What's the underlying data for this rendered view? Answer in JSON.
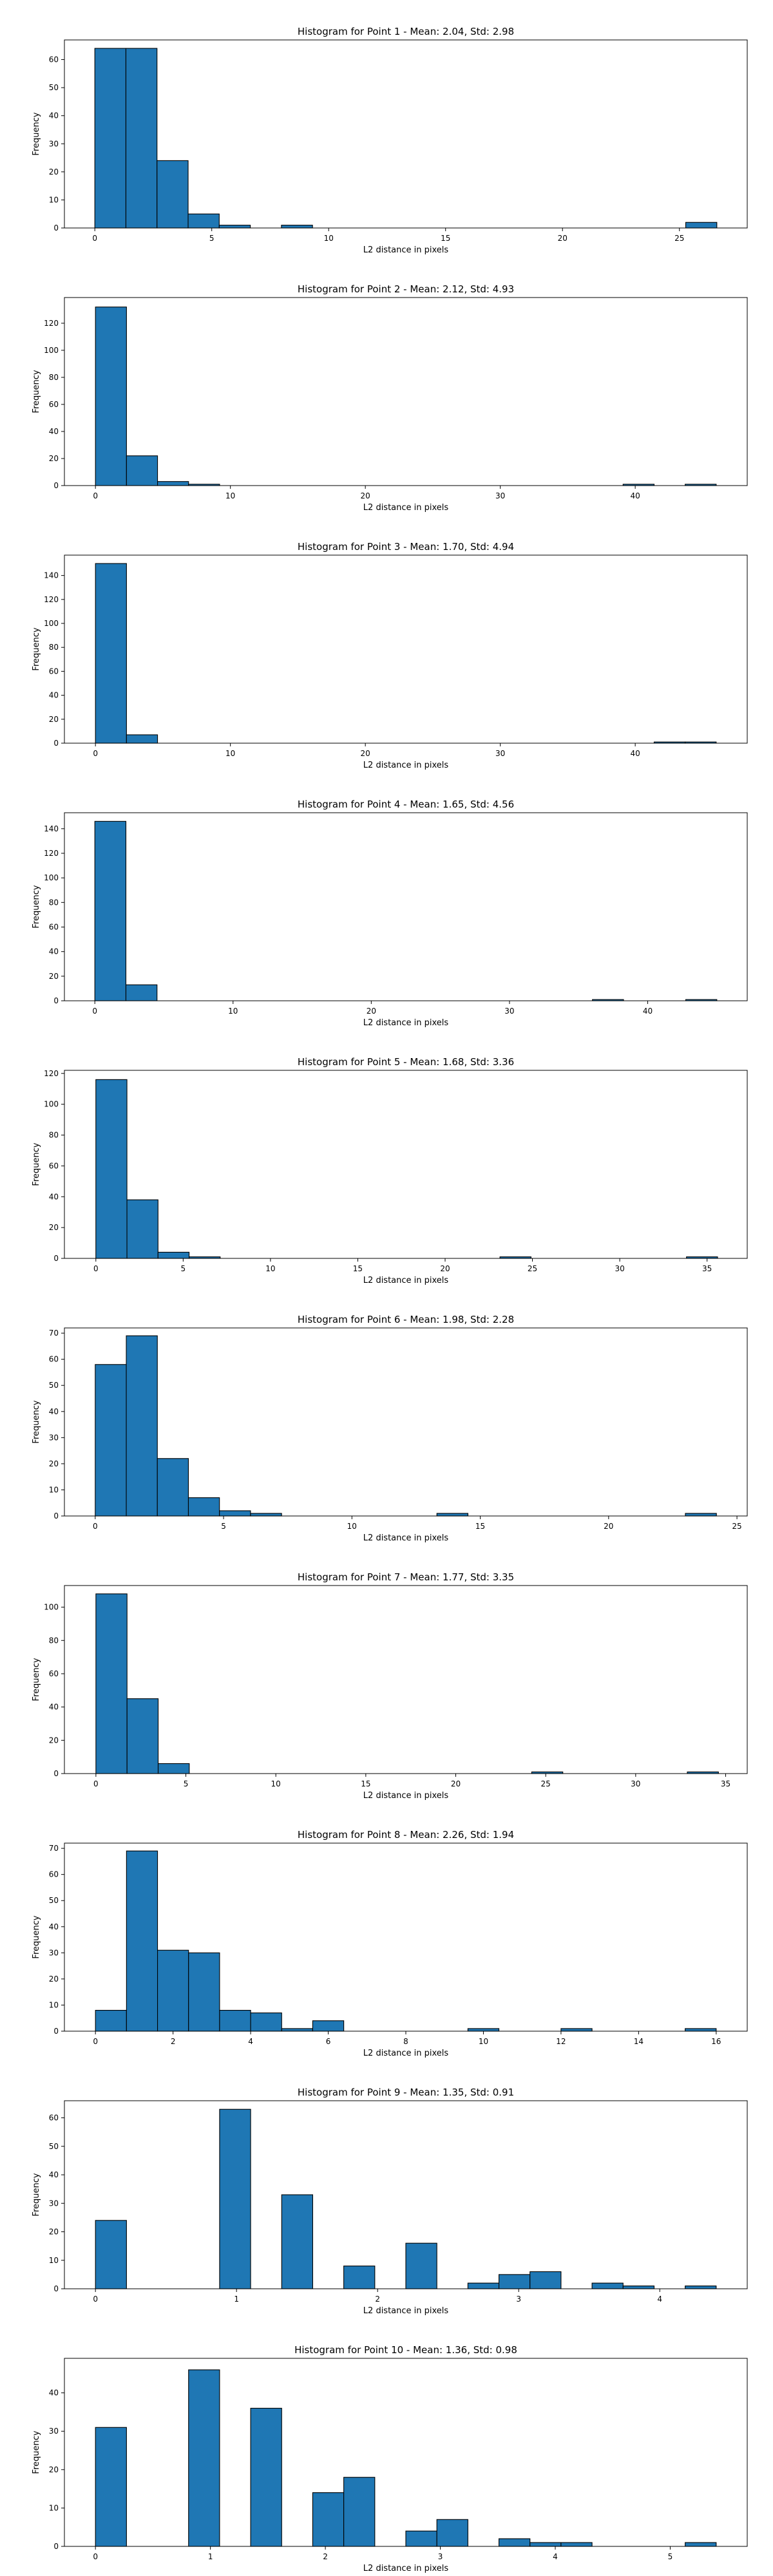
{
  "figure": {
    "color": "#1f77b4"
  },
  "chart_data": [
    {
      "type": "bar",
      "title": "Histogram for Point 1 - Mean: 2.04, Std: 2.98",
      "xlabel": "L2 distance in pixels",
      "ylabel": "Frequency",
      "xlim": [
        -1.3,
        27.9
      ],
      "ylim": [
        0,
        67
      ],
      "xticks": [
        0,
        5,
        10,
        15,
        20,
        25
      ],
      "yticks": [
        0,
        10,
        20,
        30,
        40,
        50,
        60
      ],
      "bin_edges": [
        0,
        1.33,
        2.66,
        3.99,
        5.32,
        6.65,
        7.98,
        9.31,
        10.64,
        11.97,
        13.3,
        14.63,
        15.96,
        17.29,
        18.62,
        19.95,
        21.28,
        22.61,
        23.94,
        25.27,
        26.6
      ],
      "values": [
        64,
        64,
        24,
        5,
        1,
        0,
        1,
        0,
        0,
        0,
        0,
        0,
        0,
        0,
        0,
        0,
        0,
        0,
        0,
        2
      ]
    },
    {
      "type": "bar",
      "title": "Histogram for Point 2 - Mean: 2.12, Std: 4.93",
      "xlabel": "L2 distance in pixels",
      "ylabel": "Frequency",
      "xlim": [
        -2.3,
        48.3
      ],
      "ylim": [
        0,
        139
      ],
      "xticks": [
        0,
        10,
        20,
        30,
        40
      ],
      "yticks": [
        0,
        20,
        40,
        60,
        80,
        100,
        120
      ],
      "bin_edges": [
        0,
        2.3,
        4.6,
        6.9,
        9.2,
        11.5,
        13.8,
        16.1,
        18.4,
        20.7,
        23,
        25.3,
        27.6,
        29.9,
        32.2,
        34.5,
        36.8,
        39.1,
        41.4,
        43.7,
        46
      ],
      "values": [
        132,
        22,
        3,
        1,
        0,
        0,
        0,
        0,
        0,
        0,
        0,
        0,
        0,
        0,
        0,
        0,
        0,
        1,
        0,
        1
      ]
    },
    {
      "type": "bar",
      "title": "Histogram for Point 3 - Mean: 1.70, Std: 4.94",
      "xlabel": "L2 distance in pixels",
      "ylabel": "Frequency",
      "xlim": [
        -2.3,
        48.3
      ],
      "ylim": [
        0,
        157
      ],
      "xticks": [
        0,
        10,
        20,
        30,
        40
      ],
      "yticks": [
        0,
        20,
        40,
        60,
        80,
        100,
        120,
        140
      ],
      "bin_edges": [
        0,
        2.3,
        4.6,
        6.9,
        9.2,
        11.5,
        13.8,
        16.1,
        18.4,
        20.7,
        23,
        25.3,
        27.6,
        29.9,
        32.2,
        34.5,
        36.8,
        39.1,
        41.4,
        43.7,
        46
      ],
      "values": [
        150,
        7,
        0,
        0,
        0,
        0,
        0,
        0,
        0,
        0,
        0,
        0,
        0,
        0,
        0,
        0,
        0,
        0,
        1,
        1
      ]
    },
    {
      "type": "bar",
      "title": "Histogram for Point 4 - Mean: 1.65, Std: 4.56",
      "xlabel": "L2 distance in pixels",
      "ylabel": "Frequency",
      "xlim": [
        -2.2,
        47.2
      ],
      "ylim": [
        0,
        153
      ],
      "xticks": [
        0,
        10,
        20,
        30,
        40
      ],
      "yticks": [
        0,
        20,
        40,
        60,
        80,
        100,
        120,
        140
      ],
      "bin_edges": [
        0,
        2.25,
        4.5,
        6.75,
        9,
        11.25,
        13.5,
        15.75,
        18,
        20.25,
        22.5,
        24.75,
        27,
        29.25,
        31.5,
        33.75,
        36,
        38.25,
        40.5,
        42.75,
        45
      ],
      "values": [
        146,
        13,
        0,
        0,
        0,
        0,
        0,
        0,
        0,
        0,
        0,
        0,
        0,
        0,
        0,
        0,
        1,
        0,
        0,
        1
      ]
    },
    {
      "type": "bar",
      "title": "Histogram for Point 5 - Mean: 1.68, Std: 3.36",
      "xlabel": "L2 distance in pixels",
      "ylabel": "Frequency",
      "xlim": [
        -1.8,
        37.3
      ],
      "ylim": [
        0,
        122
      ],
      "xticks": [
        0,
        5,
        10,
        15,
        20,
        25,
        30,
        35
      ],
      "yticks": [
        0,
        20,
        40,
        60,
        80,
        100,
        120
      ],
      "bin_edges": [
        0,
        1.78,
        3.56,
        5.34,
        7.12,
        8.9,
        10.68,
        12.46,
        14.24,
        16.02,
        17.8,
        19.58,
        21.36,
        23.14,
        24.92,
        26.7,
        28.48,
        30.26,
        32.04,
        33.82,
        35.6
      ],
      "values": [
        116,
        38,
        4,
        1,
        0,
        0,
        0,
        0,
        0,
        0,
        0,
        0,
        0,
        1,
        0,
        0,
        0,
        0,
        0,
        1
      ]
    },
    {
      "type": "bar",
      "title": "Histogram for Point 6 - Mean: 1.98, Std: 2.28",
      "xlabel": "L2 distance in pixels",
      "ylabel": "Frequency",
      "xlim": [
        -1.2,
        25.4
      ],
      "ylim": [
        0,
        72
      ],
      "xticks": [
        0,
        5,
        10,
        15,
        20,
        25
      ],
      "yticks": [
        0,
        10,
        20,
        30,
        40,
        50,
        60,
        70
      ],
      "bin_edges": [
        0,
        1.21,
        2.42,
        3.63,
        4.84,
        6.05,
        7.26,
        8.47,
        9.68,
        10.89,
        12.1,
        13.31,
        14.52,
        15.73,
        16.94,
        18.15,
        19.36,
        20.57,
        21.78,
        22.99,
        24.2
      ],
      "values": [
        58,
        69,
        22,
        7,
        2,
        1,
        0,
        0,
        0,
        0,
        0,
        1,
        0,
        0,
        0,
        0,
        0,
        0,
        0,
        1
      ]
    },
    {
      "type": "bar",
      "title": "Histogram for Point 7 - Mean: 1.77, Std: 3.35",
      "xlabel": "L2 distance in pixels",
      "ylabel": "Frequency",
      "xlim": [
        -1.75,
        36.2
      ],
      "ylim": [
        0,
        113
      ],
      "xticks": [
        0,
        5,
        10,
        15,
        20,
        25,
        30,
        35
      ],
      "yticks": [
        0,
        20,
        40,
        60,
        80,
        100
      ],
      "bin_edges": [
        0,
        1.73,
        3.46,
        5.19,
        6.92,
        8.65,
        10.38,
        12.11,
        13.84,
        15.57,
        17.3,
        19.03,
        20.76,
        22.49,
        24.22,
        25.95,
        27.68,
        29.41,
        31.14,
        32.87,
        34.6
      ],
      "values": [
        108,
        45,
        6,
        0,
        0,
        0,
        0,
        0,
        0,
        0,
        0,
        0,
        0,
        0,
        1,
        0,
        0,
        0,
        0,
        1
      ]
    },
    {
      "type": "bar",
      "title": "Histogram for Point 8 - Mean: 2.26, Std: 1.94",
      "xlabel": "L2 distance in pixels",
      "ylabel": "Frequency",
      "xlim": [
        -0.8,
        16.8
      ],
      "ylim": [
        0,
        72
      ],
      "xticks": [
        0,
        2,
        4,
        6,
        8,
        10,
        12,
        14,
        16
      ],
      "yticks": [
        0,
        10,
        20,
        30,
        40,
        50,
        60,
        70
      ],
      "bin_edges": [
        0,
        0.8,
        1.6,
        2.4,
        3.2,
        4.0,
        4.8,
        5.6,
        6.4,
        7.2,
        8.0,
        8.8,
        9.6,
        10.4,
        11.2,
        12.0,
        12.8,
        13.6,
        14.4,
        15.2,
        16.0
      ],
      "values": [
        8,
        69,
        31,
        30,
        8,
        7,
        1,
        4,
        0,
        0,
        0,
        0,
        1,
        0,
        0,
        1,
        0,
        0,
        0,
        1
      ]
    },
    {
      "type": "bar",
      "title": "Histogram for Point 9 - Mean: 1.35, Std: 0.91",
      "xlabel": "L2 distance in pixels",
      "ylabel": "Frequency",
      "xlim": [
        -0.22,
        4.62
      ],
      "ylim": [
        0,
        66
      ],
      "xticks": [
        0,
        1,
        2,
        3,
        4
      ],
      "yticks": [
        0,
        10,
        20,
        30,
        40,
        50,
        60
      ],
      "bin_edges": [
        0,
        0.22,
        0.44,
        0.66,
        0.88,
        1.1,
        1.32,
        1.54,
        1.76,
        1.98,
        2.2,
        2.42,
        2.64,
        2.86,
        3.08,
        3.3,
        3.52,
        3.74,
        3.96,
        4.18,
        4.4
      ],
      "values": [
        24,
        0,
        0,
        0,
        63,
        0,
        33,
        0,
        8,
        0,
        16,
        0,
        2,
        5,
        6,
        0,
        2,
        1,
        0,
        1
      ]
    },
    {
      "type": "bar",
      "title": "Histogram for Point 10 - Mean: 1.36, Std: 0.98",
      "xlabel": "L2 distance in pixels",
      "ylabel": "Frequency",
      "xlim": [
        -0.27,
        5.67
      ],
      "ylim": [
        0,
        49
      ],
      "xticks": [
        0,
        1,
        2,
        3,
        4,
        5
      ],
      "yticks": [
        0,
        10,
        20,
        30,
        40
      ],
      "bin_edges": [
        0,
        0.27,
        0.54,
        0.81,
        1.08,
        1.35,
        1.62,
        1.89,
        2.16,
        2.43,
        2.7,
        2.97,
        3.24,
        3.51,
        3.78,
        4.05,
        4.32,
        4.59,
        4.86,
        5.13,
        5.4
      ],
      "values": [
        31,
        0,
        0,
        46,
        0,
        36,
        0,
        14,
        18,
        0,
        4,
        7,
        0,
        2,
        1,
        1,
        0,
        0,
        0,
        1
      ]
    }
  ]
}
